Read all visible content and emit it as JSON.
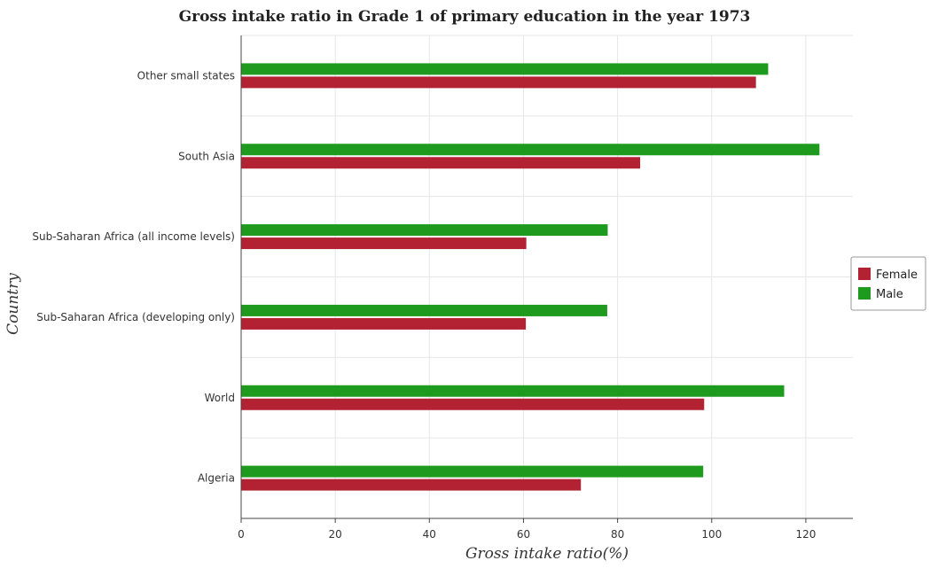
{
  "chart_data": {
    "type": "bar",
    "orientation": "horizontal",
    "title": "Gross intake ratio in Grade 1 of primary education in the year 1973",
    "xlabel": "Gross intake ratio(%)",
    "ylabel": "Country",
    "xlim": [
      0,
      130
    ],
    "xticks": [
      0,
      20,
      40,
      60,
      80,
      100,
      120
    ],
    "grid": true,
    "legend_position": "right",
    "categories": [
      "Other small states",
      "South Asia",
      "Sub-Saharan Africa (all income levels)",
      "Sub-Saharan Africa (developing only)",
      "World",
      "Algeria"
    ],
    "series": [
      {
        "name": "Female",
        "color": "#b22233",
        "values": [
          109.4,
          84.8,
          60.6,
          60.5,
          98.4,
          72.2
        ]
      },
      {
        "name": "Male",
        "color": "#1e9a1e",
        "values": [
          112.0,
          122.9,
          77.9,
          77.8,
          115.4,
          98.2
        ]
      }
    ]
  }
}
